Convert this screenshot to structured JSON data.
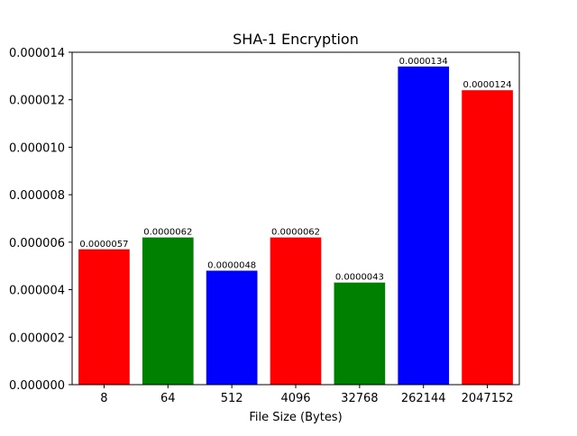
{
  "chart_data": {
    "type": "bar",
    "title": "SHA-1 Encryption",
    "xlabel": "File Size (Bytes)",
    "ylabel": "",
    "categories": [
      "8",
      "64",
      "512",
      "4096",
      "32768",
      "262144",
      "2047152"
    ],
    "values": [
      5.7e-06,
      6.2e-06,
      4.8e-06,
      6.2e-06,
      4.3e-06,
      1.34e-05,
      1.24e-05
    ],
    "value_labels": [
      "0.0000057",
      "0.0000062",
      "0.0000048",
      "0.0000062",
      "0.0000043",
      "0.0000134",
      "0.0000124"
    ],
    "bar_colors": [
      "#ff0000",
      "#008000",
      "#0000ff",
      "#ff0000",
      "#008000",
      "#0000ff",
      "#ff0000"
    ],
    "ylim": [
      0,
      1.4e-05
    ],
    "yticks": [
      0,
      2e-06,
      4e-06,
      6e-06,
      8e-06,
      1e-05,
      1.2e-05,
      1.4e-05
    ],
    "ytick_labels": [
      "0.000000",
      "0.000002",
      "0.000004",
      "0.000006",
      "0.000008",
      "0.000010",
      "0.000012",
      "0.000014"
    ],
    "grid": false,
    "legend": "none"
  }
}
